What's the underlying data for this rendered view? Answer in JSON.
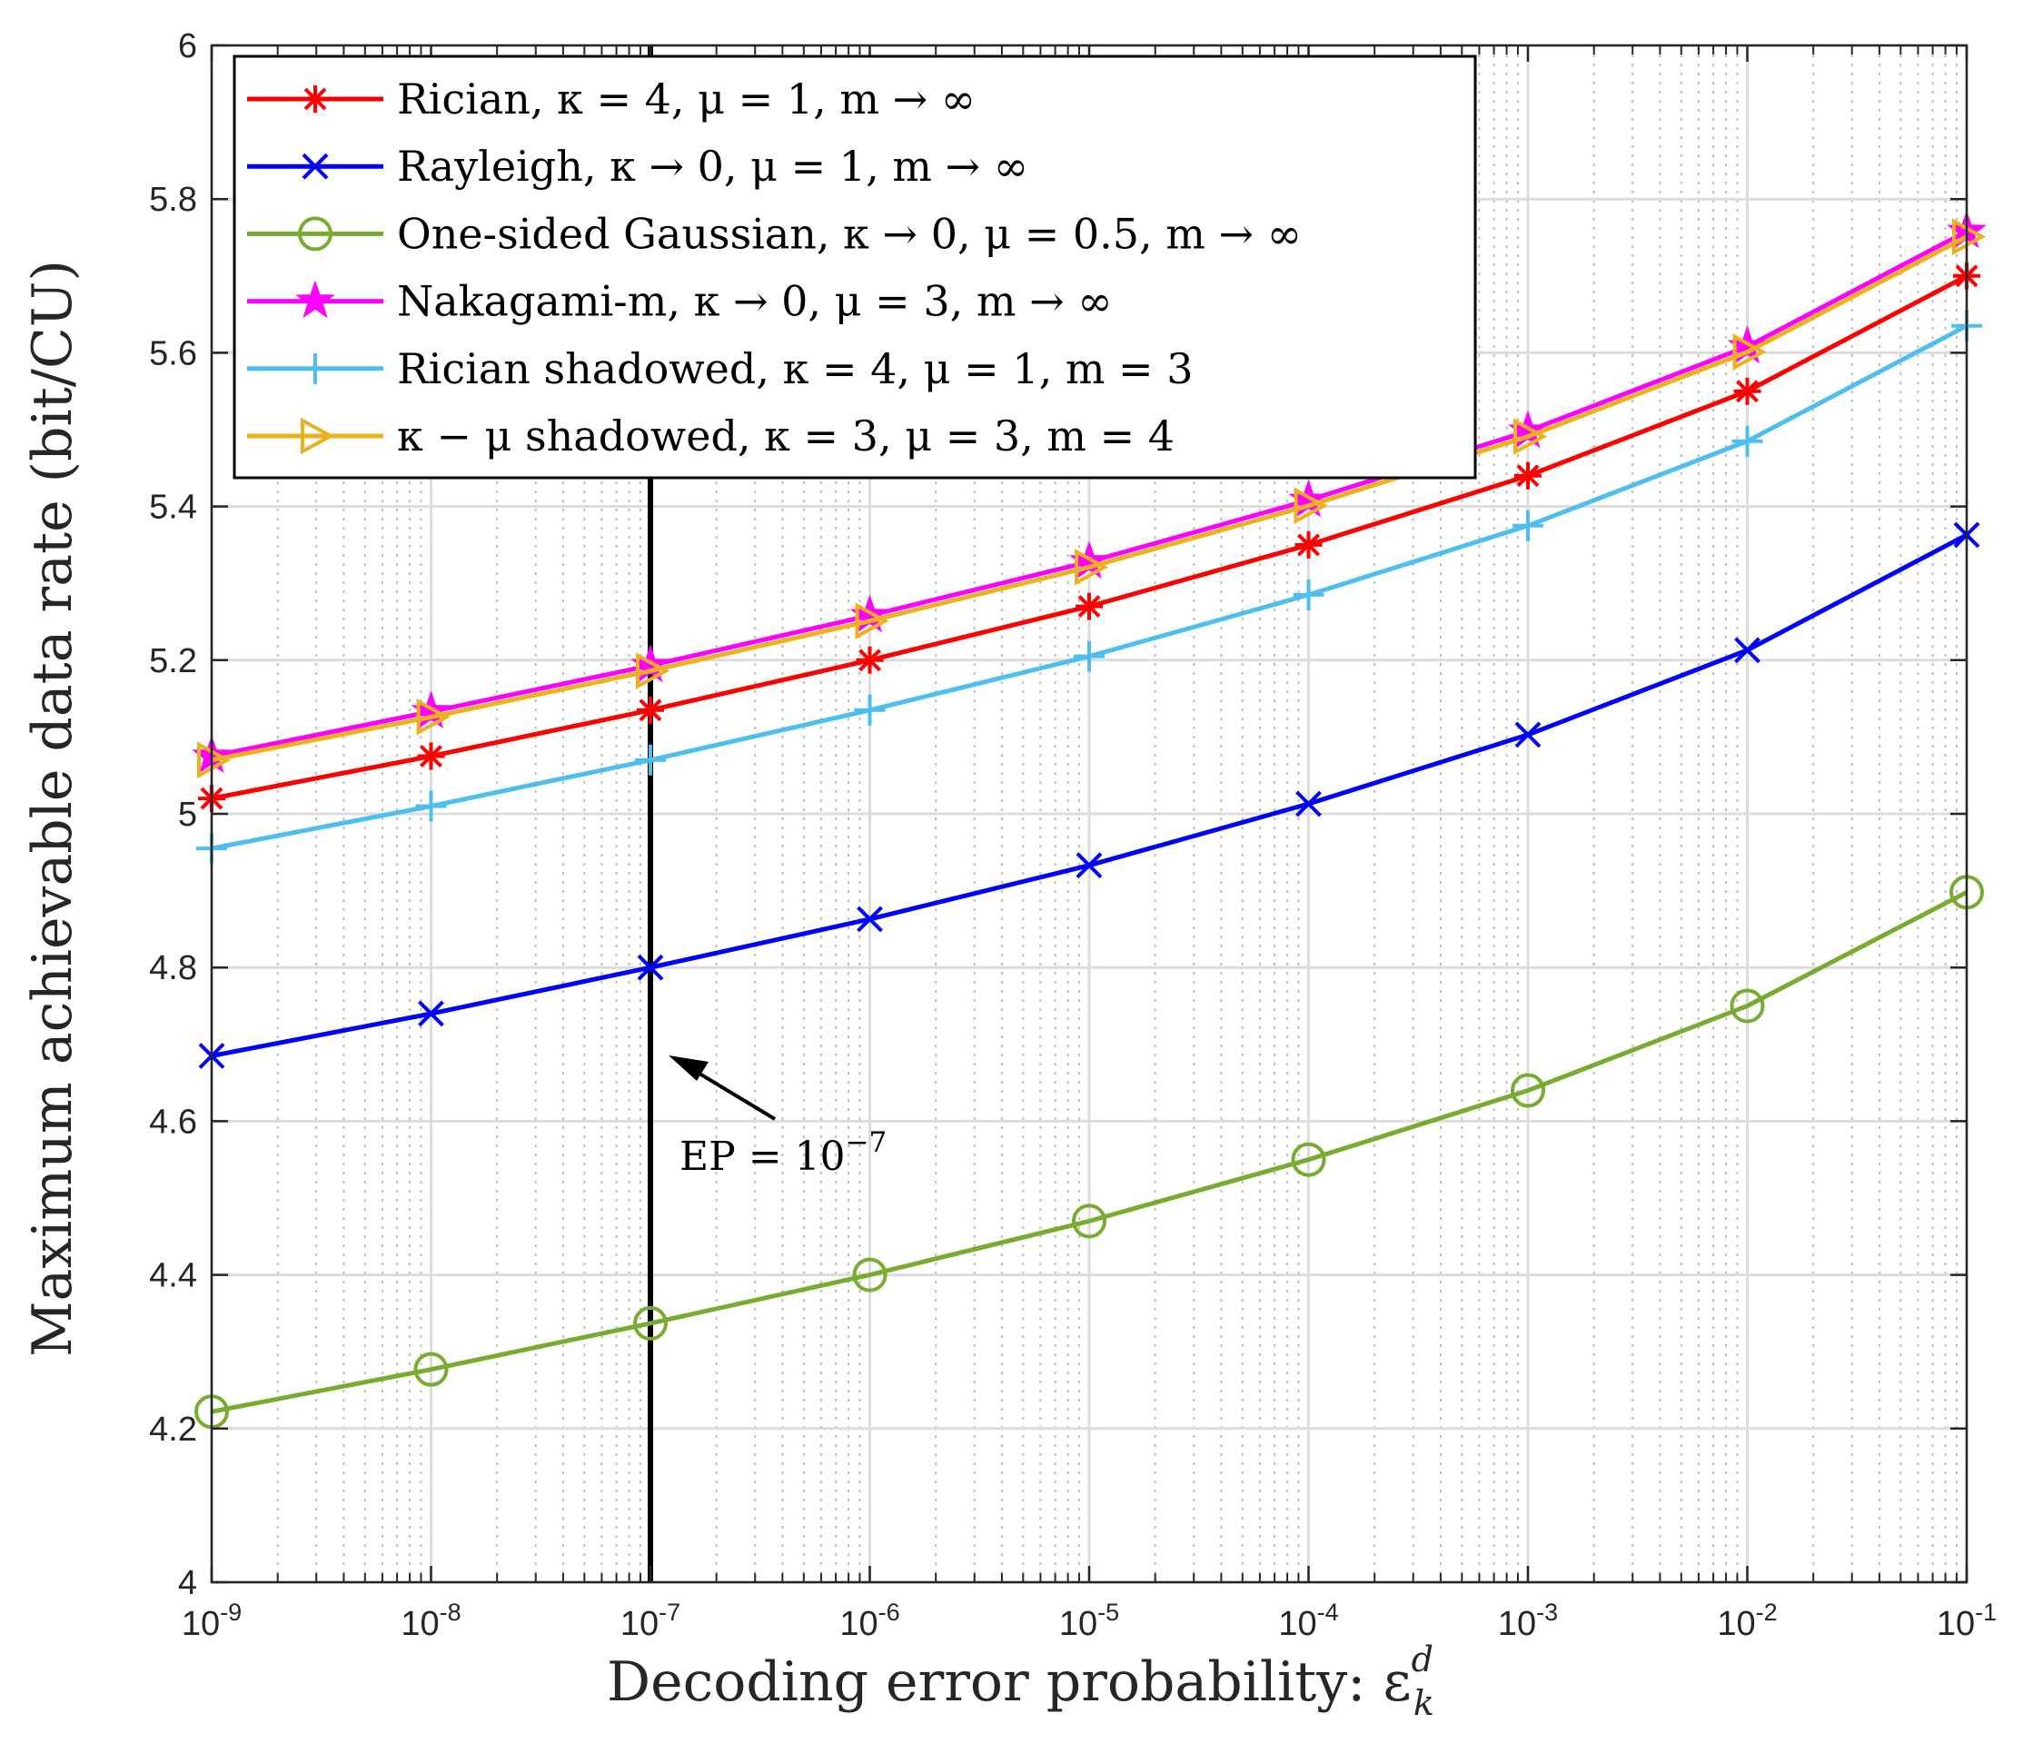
{
  "chart_data": {
    "type": "line",
    "xscale": "log",
    "x": [
      1e-09,
      1e-08,
      1e-07,
      1e-06,
      1e-05,
      0.0001,
      0.001,
      0.01,
      0.1
    ],
    "xlim_exp": [
      -9,
      -1
    ],
    "ylim": [
      4,
      6
    ],
    "yticks": [
      "4",
      "4.2",
      "4.4",
      "4.6",
      "4.8",
      "5",
      "5.2",
      "5.4",
      "5.6",
      "5.8",
      "6"
    ],
    "xticks": [
      {
        "base": "10",
        "exp": "-9"
      },
      {
        "base": "10",
        "exp": "-8"
      },
      {
        "base": "10",
        "exp": "-7"
      },
      {
        "base": "10",
        "exp": "-6"
      },
      {
        "base": "10",
        "exp": "-5"
      },
      {
        "base": "10",
        "exp": "-4"
      },
      {
        "base": "10",
        "exp": "-3"
      },
      {
        "base": "10",
        "exp": "-2"
      },
      {
        "base": "10",
        "exp": "-1"
      }
    ],
    "xlabel": "Decoding error probability: ε",
    "xlabel_sup": "d",
    "xlabel_sub": "k",
    "ylabel": "Maximum achievable data rate (bit/CU)",
    "grid": true,
    "legend_position": "top-left",
    "series": [
      {
        "name": "Rician, κ = 4, μ = 1, m → ∞",
        "color": "#ff0000",
        "marker": "asterisk",
        "values": [
          5.02,
          5.075,
          5.135,
          5.2,
          5.27,
          5.35,
          5.44,
          5.55,
          5.7
        ]
      },
      {
        "name": "Rayleigh, κ → 0, μ = 1, m → ∞",
        "color": "#0000ff",
        "marker": "x",
        "values": [
          4.685,
          4.74,
          4.8,
          4.863,
          4.933,
          5.013,
          5.103,
          5.213,
          5.363
        ]
      },
      {
        "name": "One-sided Gaussian, κ → 0, μ = 0.5, m → ∞",
        "color": "#77ac30",
        "marker": "circle",
        "values": [
          4.222,
          4.277,
          4.337,
          4.4,
          4.47,
          4.55,
          4.64,
          4.75,
          4.898
        ]
      },
      {
        "name": "Nakagami-m, κ → 0, μ = 3, m → ∞",
        "color": "#ff00ff",
        "marker": "star",
        "values": [
          5.075,
          5.133,
          5.193,
          5.258,
          5.328,
          5.408,
          5.498,
          5.608,
          5.758
        ]
      },
      {
        "name": "Rician shadowed, κ = 4, μ = 1, m = 3",
        "color": "#4dbeee",
        "marker": "plus",
        "values": [
          4.955,
          5.01,
          5.07,
          5.135,
          5.205,
          5.285,
          5.375,
          5.485,
          5.635
        ]
      },
      {
        "name": "κ − μ shadowed, κ = 3, μ = 3, m = 4",
        "color": "#edb120",
        "marker": "triangle-right",
        "values": [
          5.07,
          5.126,
          5.186,
          5.251,
          5.321,
          5.401,
          5.491,
          5.601,
          5.751
        ]
      }
    ],
    "annotations": [
      {
        "type": "vline",
        "x": 1e-07,
        "color": "#000000"
      },
      {
        "type": "arrow-label",
        "text_base": "EP = 10",
        "text_exp": "−7"
      }
    ]
  }
}
